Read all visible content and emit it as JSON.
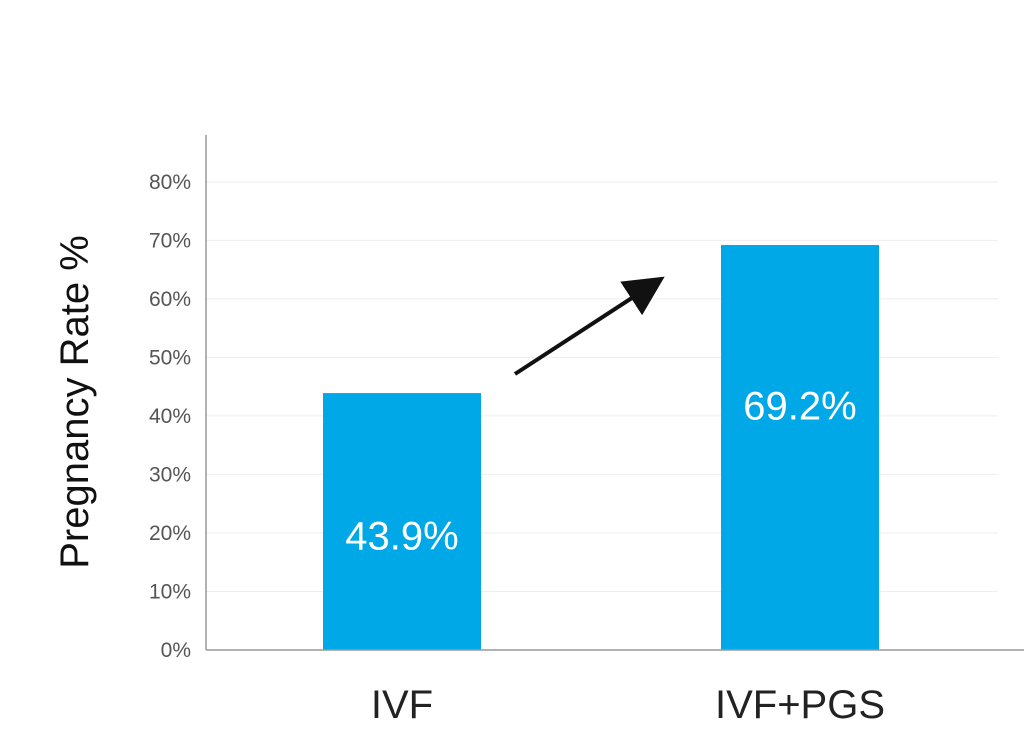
{
  "chart_data": {
    "type": "bar",
    "categories": [
      "IVF",
      "IVF+PGS"
    ],
    "values": [
      43.9,
      69.2
    ],
    "data_labels": [
      "43.9%",
      "69.2%"
    ],
    "title": "",
    "xlabel": "",
    "ylabel": "Pregnancy Rate %",
    "ylim": [
      0,
      88
    ],
    "yticks": [
      0,
      10,
      20,
      30,
      40,
      50,
      60,
      70,
      80
    ],
    "ytick_labels": [
      "0%",
      "10%",
      "20%",
      "30%",
      "40%",
      "50%",
      "60%",
      "70%",
      "80%"
    ],
    "grid": true,
    "legend": "none",
    "annotation": "arrow-up-right",
    "bar_color": "#00a8e8",
    "axis_color": "#999999",
    "grid_color": "#eeeeee",
    "text_color": "#222222"
  }
}
